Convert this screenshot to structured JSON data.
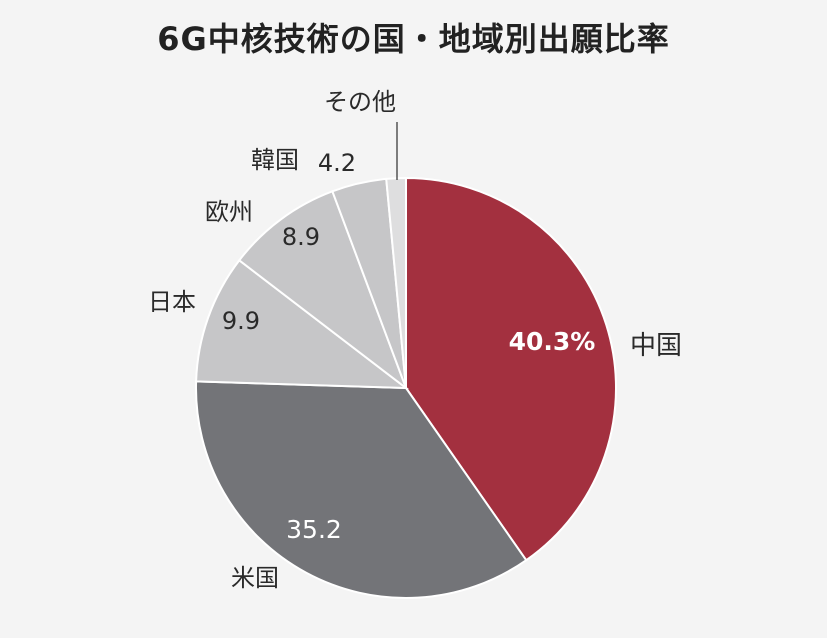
{
  "title": "6G中核技術の国・地域別出願比率",
  "chart_data": {
    "type": "pie",
    "title": "6G中核技術の国・地域別出願比率",
    "unit": "%",
    "slices": [
      {
        "name": "中国",
        "value": 40.3,
        "value_label": "40.3%",
        "color": "#a3303f"
      },
      {
        "name": "米国",
        "value": 35.2,
        "value_label": "35.2",
        "color": "#737478"
      },
      {
        "name": "日本",
        "value": 9.9,
        "value_label": "9.9",
        "color": "#c6c6c8"
      },
      {
        "name": "欧州",
        "value": 8.9,
        "value_label": "8.9",
        "color": "#c6c6c8"
      },
      {
        "name": "韓国",
        "value": 4.2,
        "value_label": "4.2",
        "color": "#c6c6c8"
      },
      {
        "name": "その他",
        "value": 1.5,
        "value_label": "",
        "color": "#dededf"
      }
    ]
  }
}
